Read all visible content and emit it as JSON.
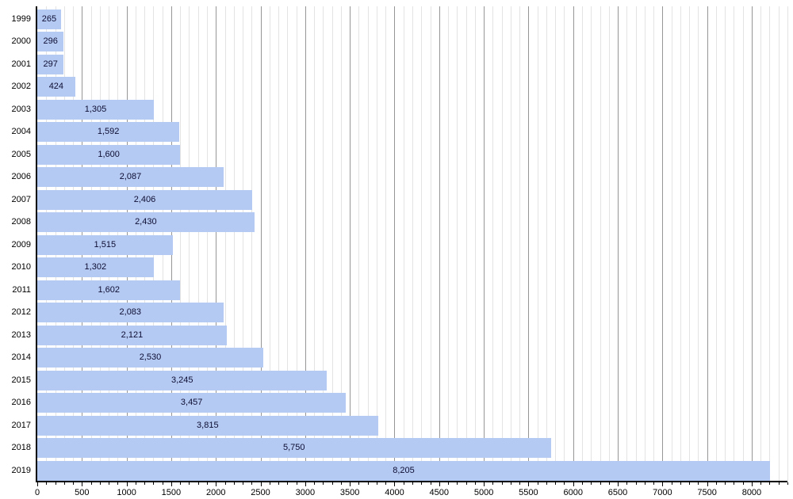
{
  "chart_data": {
    "type": "bar",
    "orientation": "horizontal",
    "title": "",
    "xlabel": "",
    "ylabel": "",
    "legend": null,
    "grid": true,
    "categories": [
      "1999",
      "2000",
      "2001",
      "2002",
      "2003",
      "2004",
      "2005",
      "2006",
      "2007",
      "2008",
      "2009",
      "2010",
      "2011",
      "2012",
      "2013",
      "2014",
      "2015",
      "2016",
      "2017",
      "2018",
      "2019"
    ],
    "values": [
      265,
      296,
      297,
      424,
      1305,
      1592,
      1600,
      2087,
      2406,
      2430,
      1515,
      1302,
      1602,
      2083,
      2121,
      2530,
      3245,
      3457,
      3815,
      5750,
      8205
    ],
    "value_labels": [
      "265",
      "296",
      "297",
      "424",
      "1,305",
      "1,592",
      "1,600",
      "2,087",
      "2,406",
      "2,430",
      "1,515",
      "1,302",
      "1,602",
      "2,083",
      "2,121",
      "2,530",
      "3,245",
      "3,457",
      "3,815",
      "5,750",
      "8,205"
    ],
    "xlim": [
      0,
      8400
    ],
    "x_major_step": 500,
    "x_minor_step": 100,
    "x_tick_labels": [
      "0",
      "500",
      "1000",
      "1500",
      "2000",
      "2500",
      "3000",
      "3500",
      "4000",
      "4500",
      "5000",
      "5500",
      "6000",
      "6500",
      "7000",
      "7500",
      "8000"
    ],
    "colors": {
      "bar_fill": "#b5caf2",
      "bar_value_text": "#0d0d33",
      "grid_minor": "#e3e3e3",
      "grid_major": "#969696",
      "axis": "#000000",
      "tick_text": "#000000"
    }
  }
}
